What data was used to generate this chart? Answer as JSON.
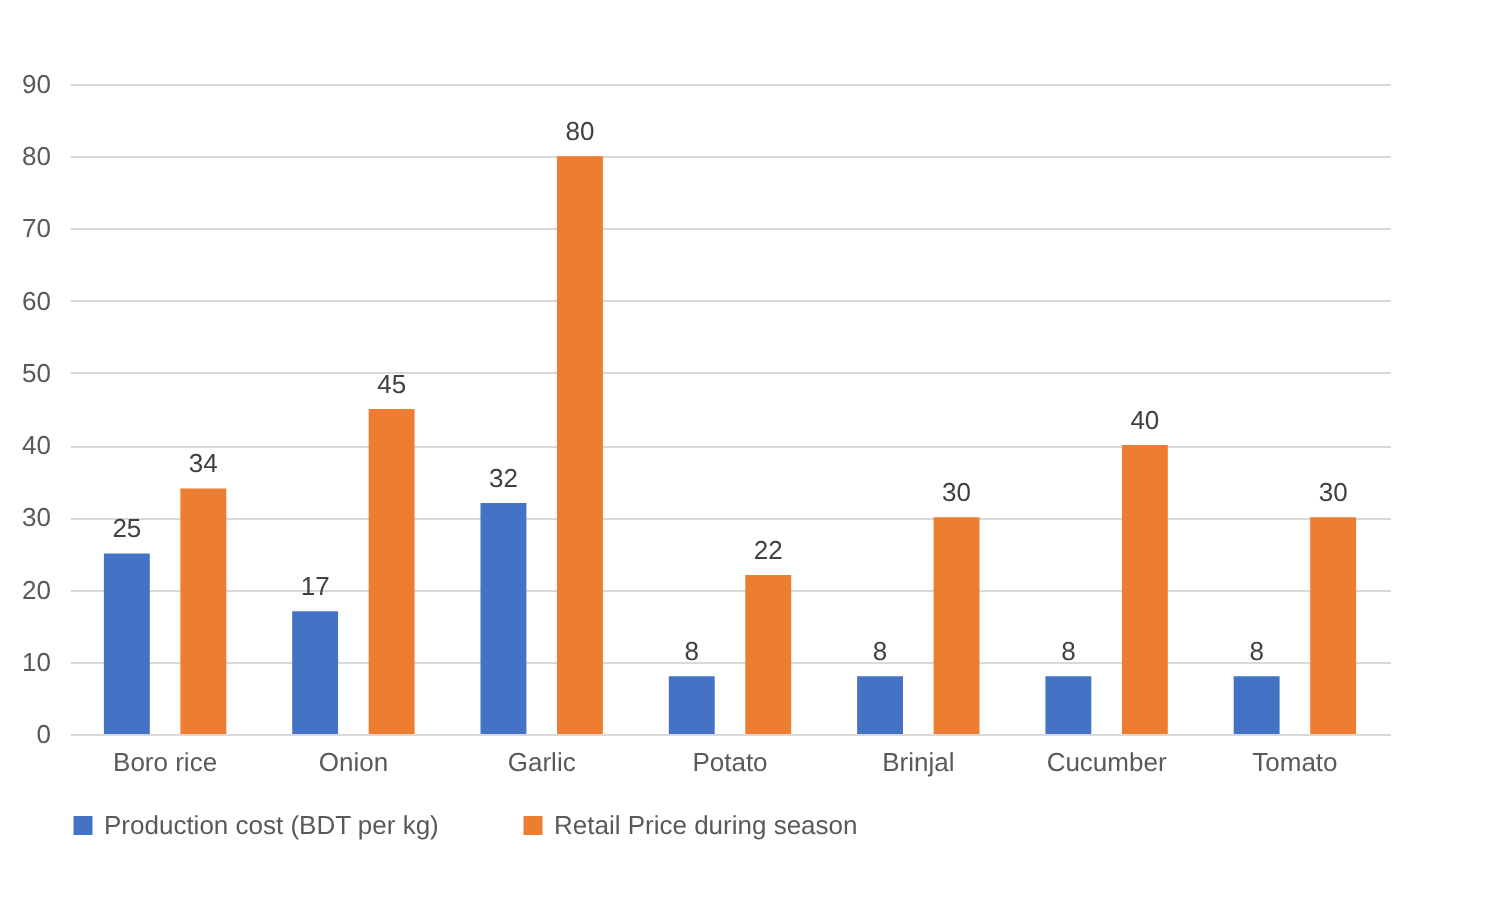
{
  "chart_data": {
    "type": "bar",
    "categories": [
      "Boro rice",
      "Onion",
      "Garlic",
      "Potato",
      "Brinjal",
      "Cucumber",
      "Tomato"
    ],
    "series": [
      {
        "name": "Production cost (BDT per kg)",
        "color": "#4472c4",
        "values": [
          25,
          17,
          32,
          8,
          8,
          8,
          8
        ]
      },
      {
        "name": "Retail Price during season",
        "color": "#ed7d31",
        "values": [
          34,
          45,
          80,
          22,
          30,
          40,
          30
        ]
      }
    ],
    "ylim": [
      0,
      90
    ],
    "yticks": [
      0,
      10,
      20,
      30,
      40,
      50,
      60,
      70,
      80,
      90
    ],
    "grid": "y",
    "legend": "bottom",
    "data_labels": true
  }
}
